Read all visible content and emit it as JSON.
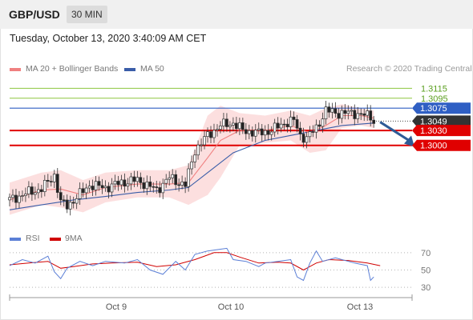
{
  "header": {
    "symbol": "GBP/USD",
    "timeframe": "30 MIN"
  },
  "timestamp": "Tuesday, October 13, 2020 3:40:09 AM CET",
  "legend": {
    "ma_bb": "MA 20 + Bollinger Bands",
    "ma50": "MA 50",
    "copyright": "Research © 2020 Trading Central"
  },
  "rsi_legend": {
    "rsi": "RSI",
    "ma9": "9MA"
  },
  "colors": {
    "ma20": "#f08080",
    "ma50": "#3a5da8",
    "bands_fill": "#fbd9d9",
    "resistance": "#2f5fc4",
    "support": "#e00000",
    "targets": "#8dc63f",
    "price_tag": "#333333",
    "rsi": "#5b7fd6",
    "rsi_ma": "#d00000"
  },
  "chart_data": {
    "type": "candlestick",
    "ylim": [
      1.2835,
      1.3135
    ],
    "levels": [
      {
        "value": 1.3115,
        "label": "1.3115",
        "kind": "target"
      },
      {
        "value": 1.3095,
        "label": "1.3095",
        "kind": "target"
      },
      {
        "value": 1.3075,
        "label": "1.3075",
        "kind": "resistance"
      },
      {
        "value": 1.3049,
        "label": "1.3049",
        "kind": "last"
      },
      {
        "value": 1.303,
        "label": "1.3030",
        "kind": "support"
      },
      {
        "value": 1.3,
        "label": "1.3000",
        "kind": "support"
      }
    ],
    "x_ticks": [
      "Oct 9",
      "Oct 10",
      "Oct 13"
    ],
    "close_path": [
      [
        0,
        1.289
      ],
      [
        6,
        1.2905
      ],
      [
        10,
        1.2912
      ],
      [
        14,
        1.294
      ],
      [
        16,
        1.2885
      ],
      [
        18,
        1.2878
      ],
      [
        21,
        1.2895
      ],
      [
        25,
        1.292
      ],
      [
        30,
        1.2915
      ],
      [
        35,
        1.2925
      ],
      [
        40,
        1.293
      ],
      [
        46,
        1.291
      ],
      [
        50,
        1.2935
      ],
      [
        53,
        1.2925
      ],
      [
        55,
        1.292
      ],
      [
        58,
        1.299
      ],
      [
        62,
        1.302
      ],
      [
        66,
        1.304
      ],
      [
        70,
        1.3045
      ],
      [
        73,
        1.303
      ],
      [
        78,
        1.3025
      ],
      [
        82,
        1.303
      ],
      [
        86,
        1.3045
      ],
      [
        89,
        1.305
      ],
      [
        91,
        1.302
      ],
      [
        93,
        1.3015
      ],
      [
        96,
        1.3035
      ],
      [
        99,
        1.307
      ],
      [
        103,
        1.3065
      ],
      [
        108,
        1.3065
      ],
      [
        113,
        1.3058
      ],
      [
        114,
        1.3049
      ]
    ],
    "bb_upper": [
      [
        0,
        1.2925
      ],
      [
        10,
        1.2945
      ],
      [
        16,
        1.295
      ],
      [
        23,
        1.293
      ],
      [
        30,
        1.2945
      ],
      [
        40,
        1.295
      ],
      [
        50,
        1.295
      ],
      [
        56,
        1.296
      ],
      [
        62,
        1.306
      ],
      [
        66,
        1.308
      ],
      [
        72,
        1.3065
      ],
      [
        80,
        1.306
      ],
      [
        88,
        1.307
      ],
      [
        94,
        1.306
      ],
      [
        99,
        1.3075
      ],
      [
        104,
        1.3083
      ],
      [
        110,
        1.3075
      ],
      [
        114,
        1.307
      ]
    ],
    "bb_lower": [
      [
        0,
        1.286
      ],
      [
        10,
        1.288
      ],
      [
        16,
        1.2875
      ],
      [
        23,
        1.2865
      ],
      [
        30,
        1.2885
      ],
      [
        40,
        1.2895
      ],
      [
        50,
        1.2895
      ],
      [
        56,
        1.288
      ],
      [
        62,
        1.29
      ],
      [
        66,
        1.2935
      ],
      [
        72,
        1.3
      ],
      [
        80,
        1.3005
      ],
      [
        88,
        1.301
      ],
      [
        94,
        1.2985
      ],
      [
        99,
        1.299
      ],
      [
        104,
        1.3035
      ],
      [
        110,
        1.304
      ],
      [
        114,
        1.3035
      ]
    ],
    "ma20": [
      [
        0,
        1.289
      ],
      [
        10,
        1.291
      ],
      [
        16,
        1.2912
      ],
      [
        23,
        1.29
      ],
      [
        30,
        1.2915
      ],
      [
        40,
        1.2922
      ],
      [
        50,
        1.2922
      ],
      [
        56,
        1.2925
      ],
      [
        62,
        1.2975
      ],
      [
        66,
        1.301
      ],
      [
        72,
        1.303
      ],
      [
        80,
        1.303
      ],
      [
        88,
        1.304
      ],
      [
        94,
        1.3025
      ],
      [
        99,
        1.304
      ],
      [
        104,
        1.306
      ],
      [
        110,
        1.306
      ],
      [
        114,
        1.3055
      ]
    ],
    "ma50": [
      [
        0,
        1.287
      ],
      [
        10,
        1.288
      ],
      [
        20,
        1.289
      ],
      [
        30,
        1.2897
      ],
      [
        40,
        1.2905
      ],
      [
        50,
        1.291
      ],
      [
        56,
        1.2915
      ],
      [
        62,
        1.2945
      ],
      [
        70,
        1.2985
      ],
      [
        80,
        1.301
      ],
      [
        88,
        1.302
      ],
      [
        96,
        1.303
      ],
      [
        104,
        1.304
      ],
      [
        114,
        1.3045
      ]
    ],
    "forecast_arrow": {
      "from": [
        116,
        1.3047
      ],
      "to": [
        126,
        1.3002
      ]
    },
    "rsi": {
      "ylim": [
        20,
        80
      ],
      "levels": [
        70,
        50,
        30
      ],
      "rsi_path": [
        [
          0,
          55
        ],
        [
          4,
          62
        ],
        [
          8,
          58
        ],
        [
          12,
          66
        ],
        [
          14,
          48
        ],
        [
          16,
          40
        ],
        [
          18,
          52
        ],
        [
          22,
          60
        ],
        [
          26,
          55
        ],
        [
          30,
          60
        ],
        [
          36,
          58
        ],
        [
          40,
          62
        ],
        [
          44,
          50
        ],
        [
          48,
          45
        ],
        [
          52,
          60
        ],
        [
          55,
          50
        ],
        [
          58,
          68
        ],
        [
          62,
          72
        ],
        [
          66,
          74
        ],
        [
          68,
          75
        ],
        [
          70,
          62
        ],
        [
          74,
          60
        ],
        [
          78,
          54
        ],
        [
          80,
          58
        ],
        [
          84,
          60
        ],
        [
          88,
          62
        ],
        [
          90,
          42
        ],
        [
          92,
          38
        ],
        [
          94,
          58
        ],
        [
          96,
          72
        ],
        [
          98,
          60
        ],
        [
          102,
          64
        ],
        [
          108,
          58
        ],
        [
          112,
          55
        ],
        [
          113,
          38
        ],
        [
          114,
          42
        ]
      ],
      "ma_path": [
        [
          0,
          56
        ],
        [
          6,
          58
        ],
        [
          12,
          60
        ],
        [
          16,
          52
        ],
        [
          20,
          54
        ],
        [
          26,
          57
        ],
        [
          32,
          58
        ],
        [
          40,
          59
        ],
        [
          46,
          54
        ],
        [
          52,
          56
        ],
        [
          58,
          62
        ],
        [
          64,
          70
        ],
        [
          68,
          70
        ],
        [
          72,
          65
        ],
        [
          78,
          58
        ],
        [
          84,
          59
        ],
        [
          88,
          58
        ],
        [
          92,
          50
        ],
        [
          96,
          58
        ],
        [
          100,
          62
        ],
        [
          106,
          61
        ],
        [
          112,
          58
        ],
        [
          116,
          55
        ]
      ]
    }
  }
}
